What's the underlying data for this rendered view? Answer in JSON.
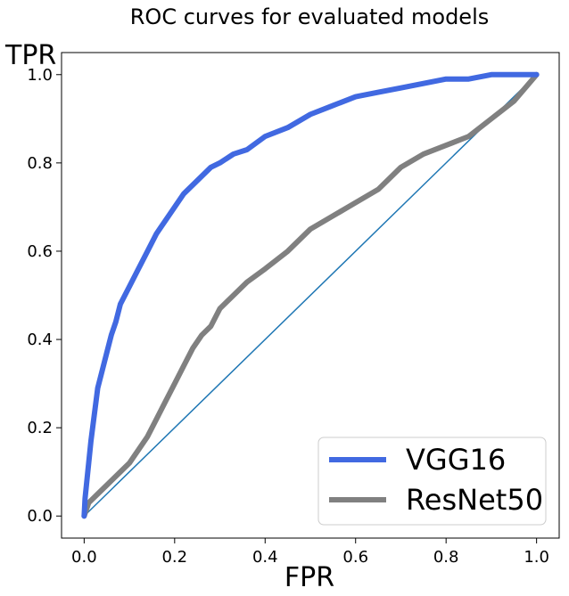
{
  "chart_data": {
    "type": "line",
    "title": "ROC curves for evaluated models",
    "xlabel": "FPR",
    "ylabel": "TPR",
    "xlim": [
      -0.05,
      1.05
    ],
    "ylim": [
      -0.05,
      1.05
    ],
    "x_ticks": [
      0.0,
      0.2,
      0.4,
      0.6,
      0.8,
      1.0
    ],
    "y_ticks": [
      0.0,
      0.2,
      0.4,
      0.6,
      0.8,
      1.0
    ],
    "x_tick_labels": [
      "0.0",
      "0.2",
      "0.4",
      "0.6",
      "0.8",
      "1.0"
    ],
    "y_tick_labels": [
      "0.0",
      "0.2",
      "0.4",
      "0.6",
      "0.8",
      "1.0"
    ],
    "grid": false,
    "legend_position": "lower-right",
    "series": [
      {
        "name": "VGG16",
        "color": "#4169e1",
        "x": [
          0.0,
          0.002,
          0.005,
          0.01,
          0.015,
          0.02,
          0.03,
          0.04,
          0.05,
          0.06,
          0.07,
          0.08,
          0.09,
          0.1,
          0.12,
          0.14,
          0.16,
          0.18,
          0.2,
          0.22,
          0.25,
          0.28,
          0.3,
          0.33,
          0.36,
          0.4,
          0.45,
          0.5,
          0.55,
          0.6,
          0.65,
          0.7,
          0.75,
          0.8,
          0.85,
          0.9,
          0.95,
          1.0
        ],
        "y": [
          0.0,
          0.04,
          0.07,
          0.12,
          0.17,
          0.21,
          0.29,
          0.33,
          0.37,
          0.41,
          0.44,
          0.48,
          0.5,
          0.52,
          0.56,
          0.6,
          0.64,
          0.67,
          0.7,
          0.73,
          0.76,
          0.79,
          0.8,
          0.82,
          0.83,
          0.86,
          0.88,
          0.91,
          0.93,
          0.95,
          0.96,
          0.97,
          0.98,
          0.99,
          0.99,
          1.0,
          1.0,
          1.0
        ]
      },
      {
        "name": "ResNet50",
        "color": "#808080",
        "x": [
          0.0,
          0.01,
          0.03,
          0.05,
          0.08,
          0.1,
          0.12,
          0.14,
          0.16,
          0.18,
          0.2,
          0.22,
          0.24,
          0.26,
          0.28,
          0.3,
          0.33,
          0.36,
          0.4,
          0.45,
          0.5,
          0.55,
          0.6,
          0.65,
          0.7,
          0.75,
          0.8,
          0.85,
          0.9,
          0.95,
          1.0
        ],
        "y": [
          0.0,
          0.03,
          0.05,
          0.07,
          0.1,
          0.12,
          0.15,
          0.18,
          0.22,
          0.26,
          0.3,
          0.34,
          0.38,
          0.41,
          0.43,
          0.47,
          0.5,
          0.53,
          0.56,
          0.6,
          0.65,
          0.68,
          0.71,
          0.74,
          0.79,
          0.82,
          0.84,
          0.86,
          0.9,
          0.94,
          1.0
        ]
      }
    ],
    "reference_line": {
      "color": "#1f77b4",
      "x": [
        0.0,
        1.0
      ],
      "y": [
        0.0,
        1.0
      ]
    }
  }
}
